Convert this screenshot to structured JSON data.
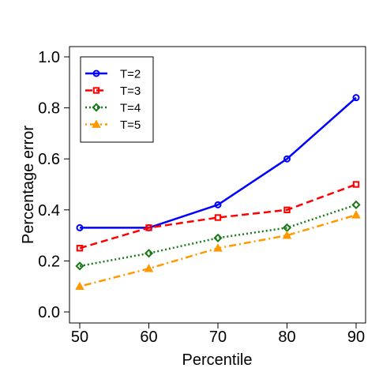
{
  "chart_data": {
    "type": "line",
    "title": "",
    "xlabel": "Percentile",
    "ylabel": "Percentage error",
    "x": [
      50,
      60,
      70,
      80,
      90
    ],
    "x_ticks": [
      "50",
      "60",
      "70",
      "80",
      "90"
    ],
    "xlim": [
      50,
      90
    ],
    "ylim": [
      0.0,
      1.0
    ],
    "y_ticks": [
      "0.0",
      "0.2",
      "0.4",
      "0.6",
      "0.8",
      "1.0"
    ],
    "grid": false,
    "legend_position": "top-left",
    "series": [
      {
        "name": "T=2",
        "values": [
          0.33,
          0.33,
          0.42,
          0.6,
          0.84
        ],
        "color": "#0000ff",
        "marker": "circle",
        "dash": "solid"
      },
      {
        "name": "T=3",
        "values": [
          0.25,
          0.33,
          0.37,
          0.4,
          0.5
        ],
        "color": "#ff0000",
        "marker": "square",
        "dash": "dashed"
      },
      {
        "name": "T=4",
        "values": [
          0.18,
          0.23,
          0.29,
          0.33,
          0.42
        ],
        "color": "#1a7a1a",
        "marker": "diamond",
        "dash": "dotted"
      },
      {
        "name": "T=5",
        "values": [
          0.1,
          0.17,
          0.25,
          0.3,
          0.38
        ],
        "color": "#ff9900",
        "marker": "triangle",
        "dash": "dotdash"
      }
    ]
  }
}
